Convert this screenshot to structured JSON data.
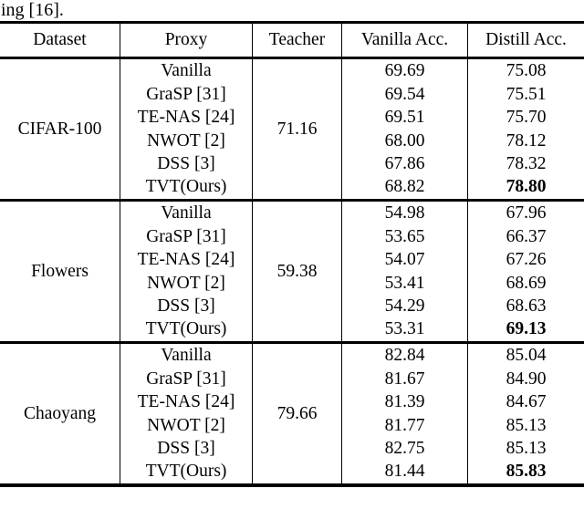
{
  "page": {
    "caption_fragment": "ing [16]."
  },
  "table": {
    "headers": {
      "dataset": "Dataset",
      "proxy": "Proxy",
      "teacher": "Teacher",
      "vanilla": "Vanilla Acc.",
      "distill": "Distill Acc."
    },
    "groups": [
      {
        "dataset": "CIFAR-100",
        "teacher": "71.16",
        "rows": [
          {
            "proxy": "Vanilla",
            "vanilla": "69.69",
            "distill": "75.08"
          },
          {
            "proxy": "GraSP [31]",
            "vanilla": "69.54",
            "distill": "75.51"
          },
          {
            "proxy": "TE-NAS [24]",
            "vanilla": "69.51",
            "distill": "75.70"
          },
          {
            "proxy": "NWOT [2]",
            "vanilla": "68.00",
            "distill": "78.12"
          },
          {
            "proxy": "DSS [3]",
            "vanilla": "67.86",
            "distill": "78.32"
          },
          {
            "proxy": "TVT(Ours)",
            "vanilla": "68.82",
            "distill": "78.80"
          }
        ]
      },
      {
        "dataset": "Flowers",
        "teacher": "59.38",
        "rows": [
          {
            "proxy": "Vanilla",
            "vanilla": "54.98",
            "distill": "67.96"
          },
          {
            "proxy": "GraSP [31]",
            "vanilla": "53.65",
            "distill": "66.37"
          },
          {
            "proxy": "TE-NAS [24]",
            "vanilla": "54.07",
            "distill": "67.26"
          },
          {
            "proxy": "NWOT [2]",
            "vanilla": "53.41",
            "distill": "68.69"
          },
          {
            "proxy": "DSS [3]",
            "vanilla": "54.29",
            "distill": "68.63"
          },
          {
            "proxy": "TVT(Ours)",
            "vanilla": "53.31",
            "distill": "69.13"
          }
        ]
      },
      {
        "dataset": "Chaoyang",
        "teacher": "79.66",
        "rows": [
          {
            "proxy": "Vanilla",
            "vanilla": "82.84",
            "distill": "85.04"
          },
          {
            "proxy": "GraSP [31]",
            "vanilla": "81.67",
            "distill": "84.90"
          },
          {
            "proxy": "TE-NAS [24]",
            "vanilla": "81.39",
            "distill": "84.67"
          },
          {
            "proxy": "NWOT [2]",
            "vanilla": "81.77",
            "distill": "85.13"
          },
          {
            "proxy": "DSS [3]",
            "vanilla": "82.75",
            "distill": "85.13"
          },
          {
            "proxy": "TVT(Ours)",
            "vanilla": "81.44",
            "distill": "85.83"
          }
        ]
      }
    ]
  }
}
